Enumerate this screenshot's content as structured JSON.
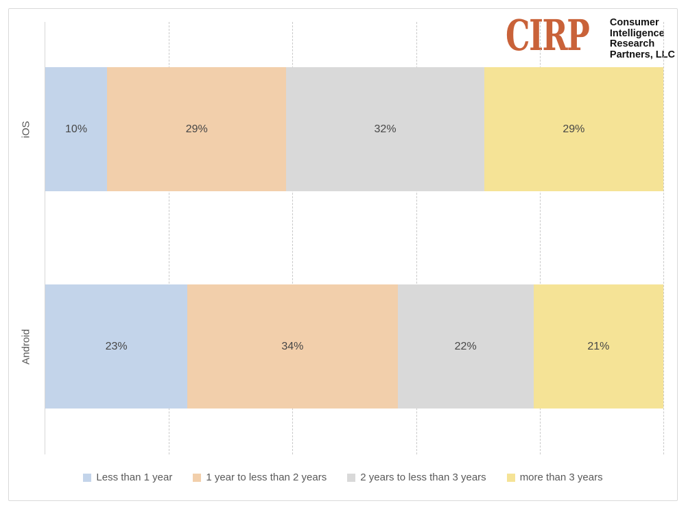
{
  "logo": {
    "acronym": "CIRP",
    "name_lines": [
      "Consumer",
      "Intelligence",
      "Research",
      "Partners, LLC"
    ],
    "accent_color": "#c96239",
    "text_color": "#111111"
  },
  "chart_data": {
    "type": "bar",
    "stacked": true,
    "orientation": "horizontal",
    "title": "",
    "xlabel": "",
    "ylabel": "",
    "categories": [
      "iOS",
      "Android"
    ],
    "series": [
      {
        "name": "Less than 1 year",
        "color": "#c3d4ea",
        "values": [
          10,
          23
        ]
      },
      {
        "name": "1 year to less than 2 years",
        "color": "#f2cfab",
        "values": [
          29,
          34
        ]
      },
      {
        "name": "2 years to less than 3 years",
        "color": "#d9d9d9",
        "values": [
          32,
          22
        ]
      },
      {
        "name": "more than 3 years",
        "color": "#f5e396",
        "values": [
          29,
          21
        ]
      }
    ],
    "value_suffix": "%",
    "xlim": [
      0,
      100
    ],
    "grid": {
      "show": true,
      "style": "dashed-vertical",
      "interval_pct": 20
    },
    "legend_position": "bottom"
  }
}
